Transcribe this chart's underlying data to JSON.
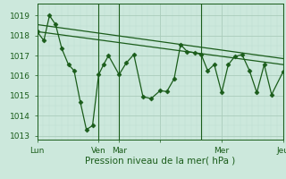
{
  "xlabel": "Pression niveau de la mer( hPa )",
  "background_color": "#cce8dc",
  "grid_color_major": "#aaccbb",
  "grid_color_minor": "#bbddd0",
  "line_color": "#1a5c1a",
  "ylim": [
    1012.8,
    1019.6
  ],
  "yticks": [
    1013,
    1014,
    1015,
    1016,
    1017,
    1018,
    1019
  ],
  "x_tick_positions": [
    0.0,
    0.25,
    0.333,
    0.5,
    0.75,
    1.0
  ],
  "x_tick_labels": [
    "Lun",
    "Ven",
    "Mar",
    "",
    "Mer",
    "Jeu"
  ],
  "series1_x": [
    0.0,
    0.027,
    0.05,
    0.075,
    0.1,
    0.127,
    0.15,
    0.175,
    0.2,
    0.225,
    0.25,
    0.27,
    0.29,
    0.333,
    0.363,
    0.393,
    0.43,
    0.463,
    0.5,
    0.527,
    0.557,
    0.583,
    0.61,
    0.64,
    0.667,
    0.693,
    0.72,
    0.75,
    0.777,
    0.803,
    0.833,
    0.863,
    0.893,
    0.923,
    0.953,
    1.0
  ],
  "series1_y": [
    1018.2,
    1017.75,
    1019.0,
    1018.55,
    1017.35,
    1016.55,
    1016.25,
    1014.7,
    1013.3,
    1013.5,
    1016.05,
    1016.55,
    1017.0,
    1016.05,
    1016.65,
    1017.05,
    1014.95,
    1014.85,
    1015.25,
    1015.2,
    1015.85,
    1017.55,
    1017.2,
    1017.15,
    1017.05,
    1016.25,
    1016.55,
    1015.15,
    1016.55,
    1016.95,
    1017.05,
    1016.25,
    1015.15,
    1016.55,
    1015.05,
    1016.2
  ],
  "trend1_x": [
    0.0,
    1.0
  ],
  "trend1_y": [
    1018.2,
    1016.55
  ],
  "trend2_x": [
    0.0,
    1.0
  ],
  "trend2_y": [
    1018.55,
    1016.85
  ],
  "vline_positions": [
    0.25,
    0.333,
    0.667,
    1.0
  ],
  "font_size_label": 7.5,
  "font_size_tick": 6.5
}
